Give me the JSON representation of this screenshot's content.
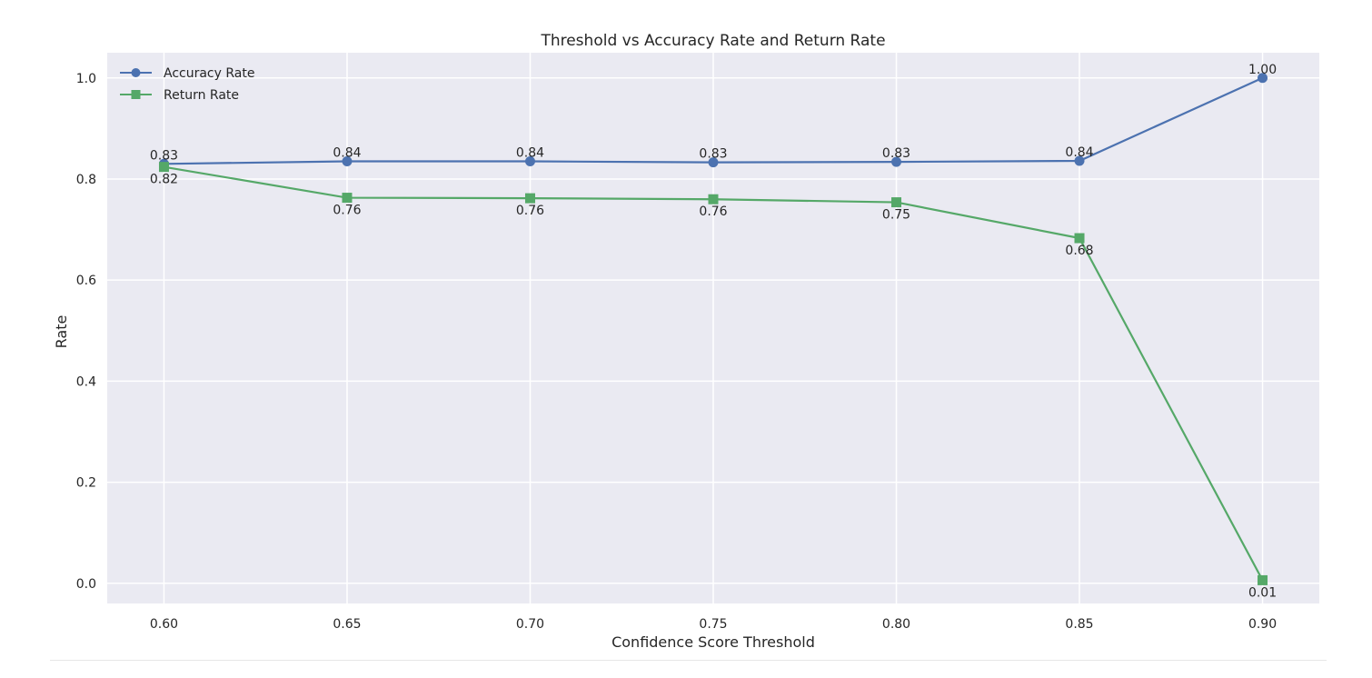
{
  "chart_data": {
    "type": "line",
    "title": "Threshold vs Accuracy Rate and Return Rate",
    "xlabel": "Confidence Score Threshold",
    "ylabel": "Rate",
    "x": [
      0.6,
      0.65,
      0.7,
      0.75,
      0.8,
      0.85,
      0.9
    ],
    "x_tick_labels": [
      "0.60",
      "0.65",
      "0.70",
      "0.75",
      "0.80",
      "0.85",
      "0.90"
    ],
    "y_ticks": [
      0.0,
      0.2,
      0.4,
      0.6,
      0.8,
      1.0
    ],
    "y_tick_labels": [
      "0.0",
      "0.2",
      "0.4",
      "0.6",
      "0.8",
      "1.0"
    ],
    "xlim": [
      0.5845,
      0.9155
    ],
    "ylim": [
      -0.04,
      1.05
    ],
    "grid": true,
    "legend": "top-left",
    "series": [
      {
        "name": "Accuracy Rate",
        "values": [
          0.83,
          0.835,
          0.835,
          0.833,
          0.834,
          0.836,
          1.0
        ],
        "labels": [
          "0.83",
          "0.84",
          "0.84",
          "0.83",
          "0.83",
          "0.84",
          "1.00"
        ],
        "label_position": "above",
        "marker": "circle",
        "color": "#4c72b0"
      },
      {
        "name": "Return Rate",
        "values": [
          0.824,
          0.763,
          0.762,
          0.76,
          0.754,
          0.683,
          0.006
        ],
        "labels": [
          "0.82",
          "0.76",
          "0.76",
          "0.76",
          "0.75",
          "0.68",
          "0.01"
        ],
        "label_position": "below",
        "marker": "square",
        "color": "#55a868"
      }
    ],
    "background_color": "#eaeaf2",
    "grid_color": "#ffffff"
  }
}
